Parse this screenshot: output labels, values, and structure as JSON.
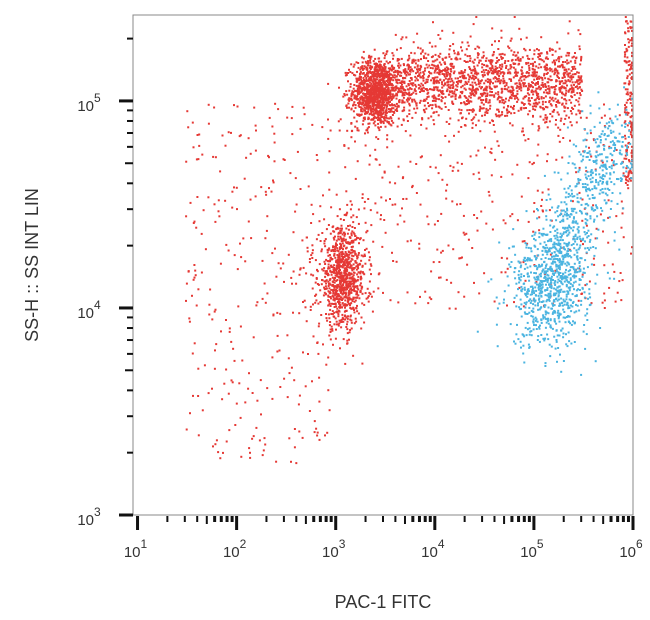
{
  "chart_data": {
    "type": "scatter",
    "title": "",
    "xlabel": "PAC-1 FITC",
    "ylabel": "SS-H :: SS INT LIN",
    "x_scale": "log",
    "y_scale": "log",
    "xlim": [
      9,
      1000000
    ],
    "ylim": [
      1000,
      260000
    ],
    "x_ticks": [
      {
        "base": "10",
        "exp": "1"
      },
      {
        "base": "10",
        "exp": "2"
      },
      {
        "base": "10",
        "exp": "3"
      },
      {
        "base": "10",
        "exp": "4"
      },
      {
        "base": "10",
        "exp": "5"
      },
      {
        "base": "10",
        "exp": "6"
      }
    ],
    "y_ticks": [
      {
        "base": "10",
        "exp": "3"
      },
      {
        "base": "10",
        "exp": "4"
      },
      {
        "base": "10",
        "exp": "5"
      }
    ],
    "grid": false,
    "legend": "none",
    "series": [
      {
        "color": "#e53935",
        "populations": [
          {
            "center": [
              2500,
              112000
            ],
            "log_spread": [
              0.12,
              0.08
            ],
            "count": 1200
          },
          {
            "x_range": [
              4000,
              300000
            ],
            "center_y": 125000,
            "log_spread_y": 0.09,
            "count": 1500
          },
          {
            "center": [
              1150,
              14000
            ],
            "log_spread": [
              0.12,
              0.12
            ],
            "count": 900
          },
          {
            "x_range": [
              30,
              1000
            ],
            "y_range": [
              1800,
              100000
            ],
            "count": 300
          },
          {
            "x_range": [
              1000,
              1000000
            ],
            "y_range": [
              10000,
              100000
            ],
            "count": 400
          },
          {
            "x_range": [
              800000,
              1000000
            ],
            "y_range": [
              40000,
              260000
            ],
            "count": 150
          }
        ]
      },
      {
        "color": "#4ab4e0",
        "populations": [
          {
            "center": [
              140000,
              12500
            ],
            "log_spread": [
              0.2,
              0.14
            ],
            "count": 700
          },
          {
            "from": [
              150000,
              15000
            ],
            "to": [
              700000,
              70000
            ],
            "log_spread": 0.12,
            "count": 550
          }
        ]
      }
    ]
  }
}
